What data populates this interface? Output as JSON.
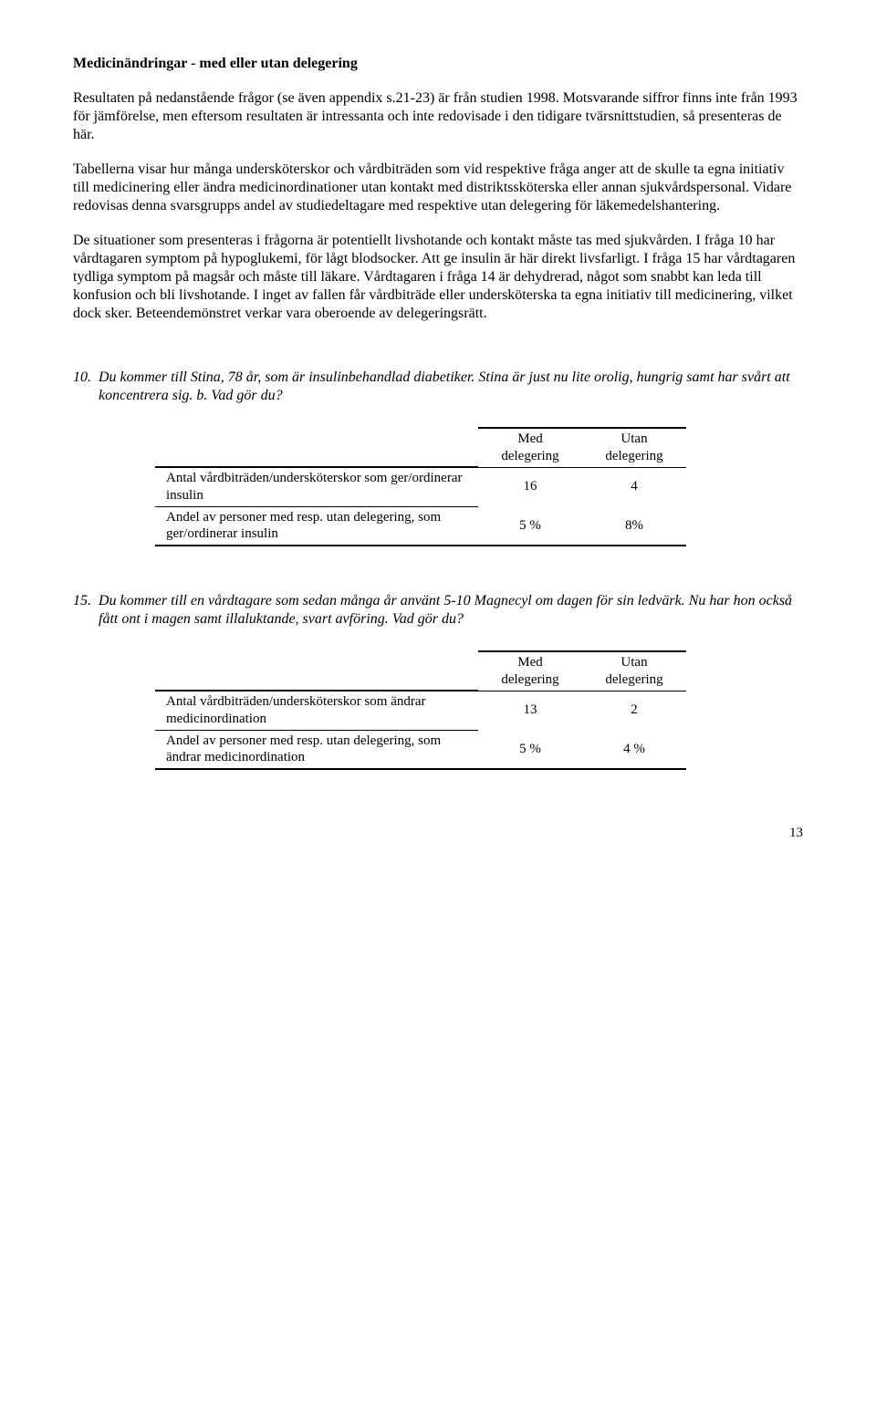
{
  "heading": "Medicinändringar - med eller utan delegering",
  "para1": "Resultaten på nedanstående frågor (se även appendix s.21-23) är från studien 1998. Motsvarande siffror finns inte från 1993 för jämförelse, men eftersom resultaten är intressanta och inte redovisade i den tidigare tvärsnittstudien, så presenteras de här.",
  "para2": "Tabellerna visar hur många undersköterskor och vårdbiträden som vid respektive fråga anger att de skulle ta egna initiativ till medicinering eller ändra medicinordinationer utan kontakt med distriktssköterska eller annan sjukvårdspersonal. Vidare redovisas denna svarsgrupps andel av studiedeltagare med respektive utan delegering för läkemedelshantering.",
  "para3": "De situationer som presenteras i frågorna är potentiellt livshotande och kontakt måste tas med sjukvården. I fråga 10 har vårdtagaren symptom på hypoglukemi, för lågt blodsocker. Att ge insulin är här direkt livsfarligt. I fråga 15 har vårdtagaren tydliga symptom på magsår och måste till läkare. Vårdtagaren i fråga 14 är dehydrerad, något som snabbt kan leda till konfusion och bli livshotande. I inget av fallen får vårdbiträde eller undersköterska ta egna initiativ till medicinering, vilket dock sker. Beteendemönstret verkar vara oberoende av delegeringsrätt.",
  "q10": {
    "num": "10.",
    "text": "Du kommer till Stina, 78 år, som är insulinbehandlad diabetiker. Stina är just nu lite orolig, hungrig samt har svårt att koncentrera sig.   b. Vad gör du?",
    "header_med": "Med delegering",
    "header_utan": "Utan delegering",
    "row1_label": "Antal vårdbiträden/undersköterskor som ger/ordinerar insulin",
    "row1_med": "16",
    "row1_utan": "4",
    "row2_label": "Andel av personer med resp. utan delegering, som ger/ordinerar insulin",
    "row2_med": "5 %",
    "row2_utan": "8%"
  },
  "q15": {
    "num": "15.",
    "text": "Du kommer till en vårdtagare som sedan många år använt 5-10 Magnecyl om dagen för sin ledvärk. Nu har hon också fått ont i magen samt illaluktande, svart avföring. Vad gör du?",
    "header_med": "Med delegering",
    "header_utan": "Utan delegering",
    "row1_label": "Antal vårdbiträden/undersköterskor som ändrar medicinordination",
    "row1_med": "13",
    "row1_utan": "2",
    "row2_label": "Andel av personer med resp. utan delegering, som ändrar medicinordination",
    "row2_med": "5 %",
    "row2_utan": "4 %"
  },
  "page_number": "13"
}
